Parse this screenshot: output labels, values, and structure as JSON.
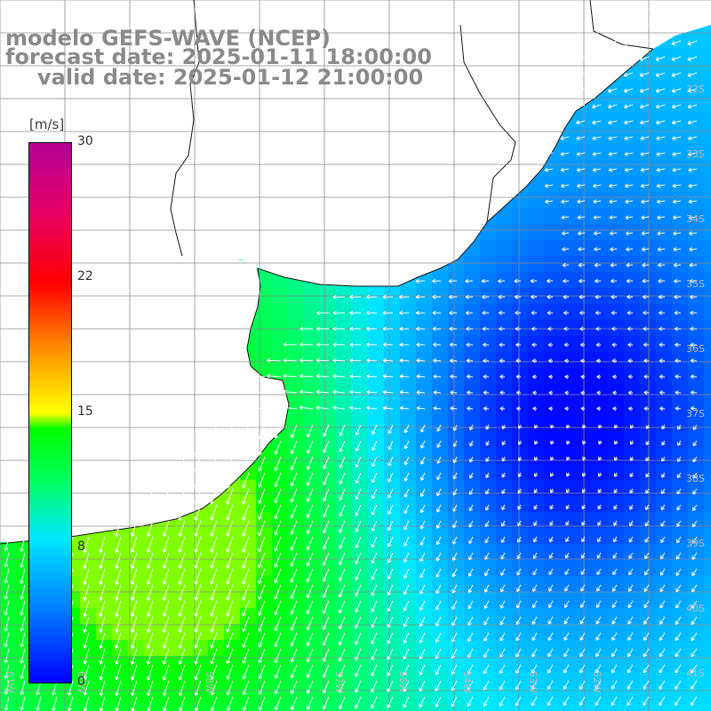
{
  "title": {
    "line1": "modelo GEFS-WAVE (NCEP)",
    "line2": "forecast date: 2025-01-11 18:00:00",
    "line3": "valid date: 2025-01-12 21:00:00"
  },
  "colorbar": {
    "unit": "[m/s]",
    "ticks": [
      "30",
      "22",
      "15",
      "8",
      "0"
    ],
    "range": [
      0,
      30
    ],
    "colors": [
      "#0000ff",
      "#0078ff",
      "#00e6ff",
      "#00ff64",
      "#00ff00",
      "#ffff00",
      "#ff8c00",
      "#ff0000",
      "#e60064",
      "#b40096"
    ]
  },
  "map": {
    "lon_labels": [
      "61W",
      "60W",
      "58W",
      "57W",
      "55W",
      "54W",
      "53W",
      "52W"
    ],
    "lat_labels": [
      "32S",
      "33S",
      "34S",
      "35S",
      "36S",
      "37S",
      "38S",
      "39S",
      "40S",
      "41S"
    ],
    "land_color": "#ffffff",
    "grid_color": "#8c8c8c",
    "arrow_color": "#ffffff"
  }
}
